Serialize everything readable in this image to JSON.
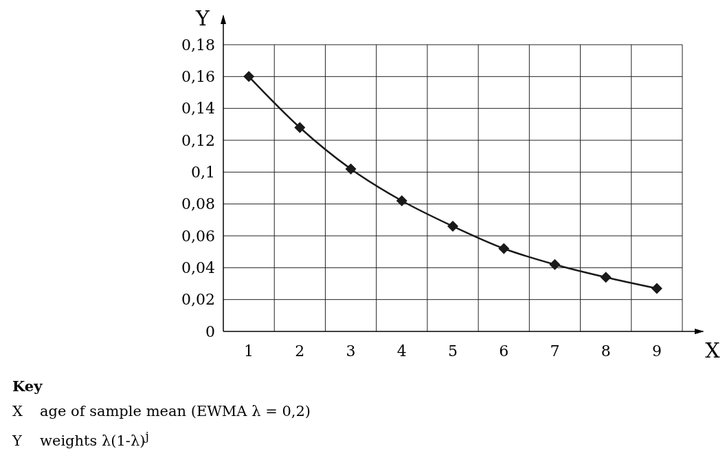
{
  "chart_data": {
    "type": "line",
    "xlabel": "X",
    "ylabel": "Y",
    "categories": [
      "1",
      "2",
      "3",
      "4",
      "5",
      "6",
      "7",
      "8",
      "9"
    ],
    "series": [
      {
        "color": "#1a1a1a",
        "values": [
          0.16,
          0.128,
          0.102,
          0.082,
          0.066,
          0.052,
          0.042,
          0.034,
          0.027
        ]
      }
    ],
    "ylim": [
      0,
      0.18
    ],
    "yticks": [
      0,
      {
        "value": 0.02,
        "label": "0,02"
      },
      {
        "value": 0.04,
        "label": "0,04"
      },
      {
        "value": 0.06,
        "label": "0,06"
      },
      {
        "value": 0.08,
        "label": "0,08"
      },
      {
        "value": 0.1,
        "label": "0,1"
      },
      {
        "value": 0.12,
        "label": "0,12"
      },
      {
        "value": 0.14,
        "label": "0,14"
      },
      {
        "value": 0.16,
        "label": "0,16"
      },
      {
        "value": 0.18,
        "label": "0,18"
      }
    ],
    "grid": true,
    "marker": "diamond",
    "line_style": "solid",
    "annotations": [
      "Key",
      "X\tage of sample mean (EWMA λ = 0,2)",
      "Y\tweights λ(1-λ)$^{j}$"
    ]
  }
}
